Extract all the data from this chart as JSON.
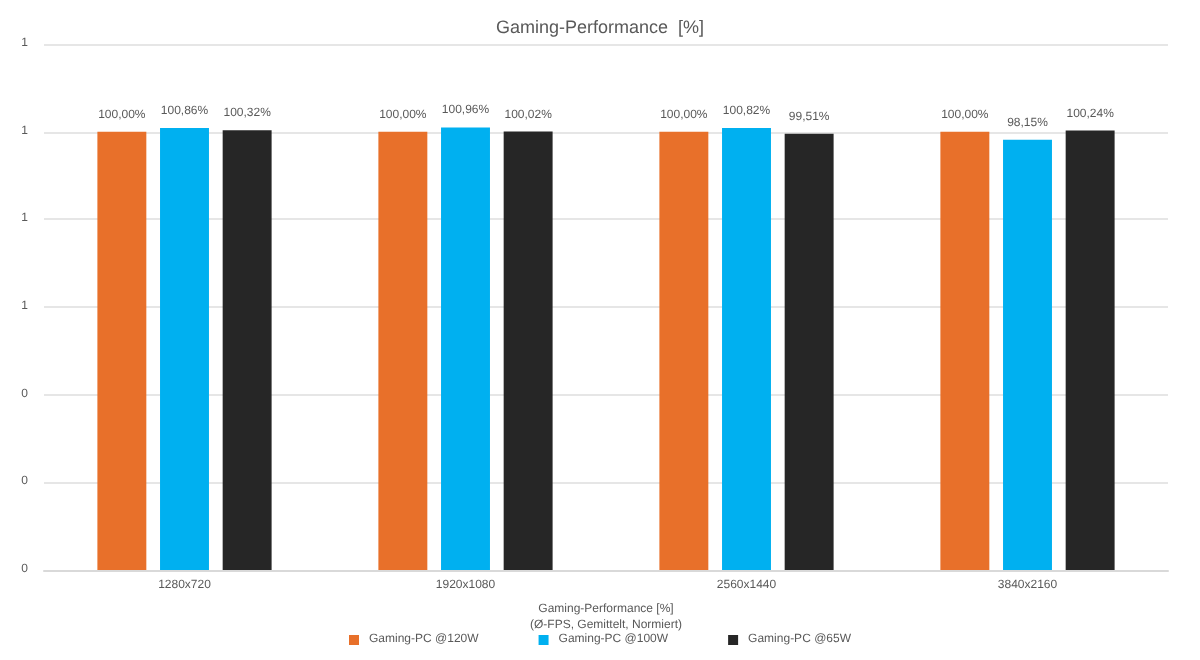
{
  "chart_data": {
    "type": "bar",
    "title": "Gaming-Performance  [%]",
    "xlabel": "Gaming-Performance [%]\n(Ø-FPS, Gemittelt, Normiert)",
    "categories": [
      "1280x720",
      "1920x1080",
      "2560x1440",
      "3840x2160"
    ],
    "series": [
      {
        "name": "Gaming-PC @120W",
        "color": "#e8702a",
        "values": [
          1.0,
          1.0,
          1.0,
          1.0
        ],
        "value_labels": [
          "100,00%",
          "100,00%",
          "100,00%",
          "100,00%"
        ]
      },
      {
        "name": "Gaming-PC @100W",
        "color": "#00b0f0",
        "values": [
          1.0086,
          1.0096,
          1.0082,
          0.9815
        ],
        "value_labels": [
          "100,86%",
          "100,96%",
          "100,82%",
          "98,15%"
        ]
      },
      {
        "name": "Gaming-PC @65W",
        "color": "#262626",
        "values": [
          1.0032,
          1.0002,
          0.9951,
          1.0024
        ],
        "value_labels": [
          "100,32%",
          "100,02%",
          "99,51%",
          "100,24%"
        ]
      }
    ],
    "ylim": [
      0,
      1.2
    ],
    "yticks": [
      0,
      {
        "value": 0.2,
        "label": "0"
      },
      {
        "value": 0.4,
        "label": "0"
      },
      {
        "value": 0.6,
        "label": "1"
      },
      {
        "value": 0.8,
        "label": "1"
      },
      {
        "value": 1.0,
        "label": "1"
      },
      {
        "value": 1.2,
        "label": "1"
      }
    ],
    "grid": "y",
    "legend": "bottom"
  }
}
